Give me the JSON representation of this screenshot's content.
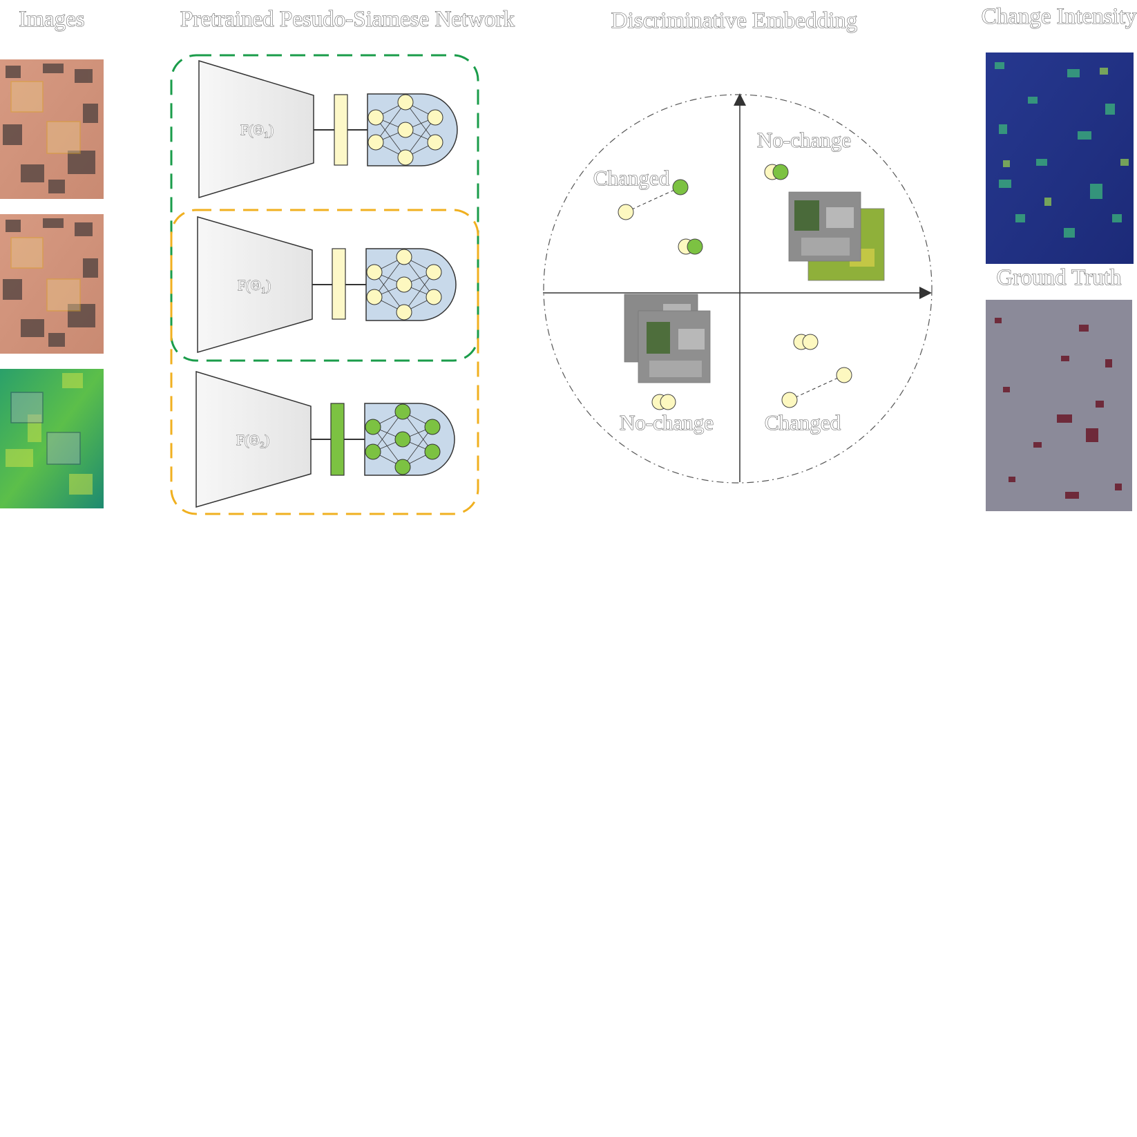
{
  "titles": {
    "images": "Images",
    "network": "Pretrained Pesudo-Siamese Network",
    "embedding": "Discriminative Embedding",
    "change_intensity": "Change Intensity",
    "ground_truth": "Ground Truth"
  },
  "network": {
    "encoder_1_label": "F(Θ₁)",
    "encoder_2_label": "F(Θ₁)",
    "encoder_3_label": "F(Θ₂)"
  },
  "embedding": {
    "changed_upper_left": "Changed",
    "nochange_upper_right": "No-change",
    "nochange_lower_left": "No-change",
    "changed_lower_right": "Changed"
  },
  "colors": {
    "green_dash": "#1a9c4a",
    "orange_dash": "#f0b020",
    "yellow_node": "#fdf8c0",
    "green_node": "#7cc242",
    "head_fill": "#c8d9ea"
  }
}
